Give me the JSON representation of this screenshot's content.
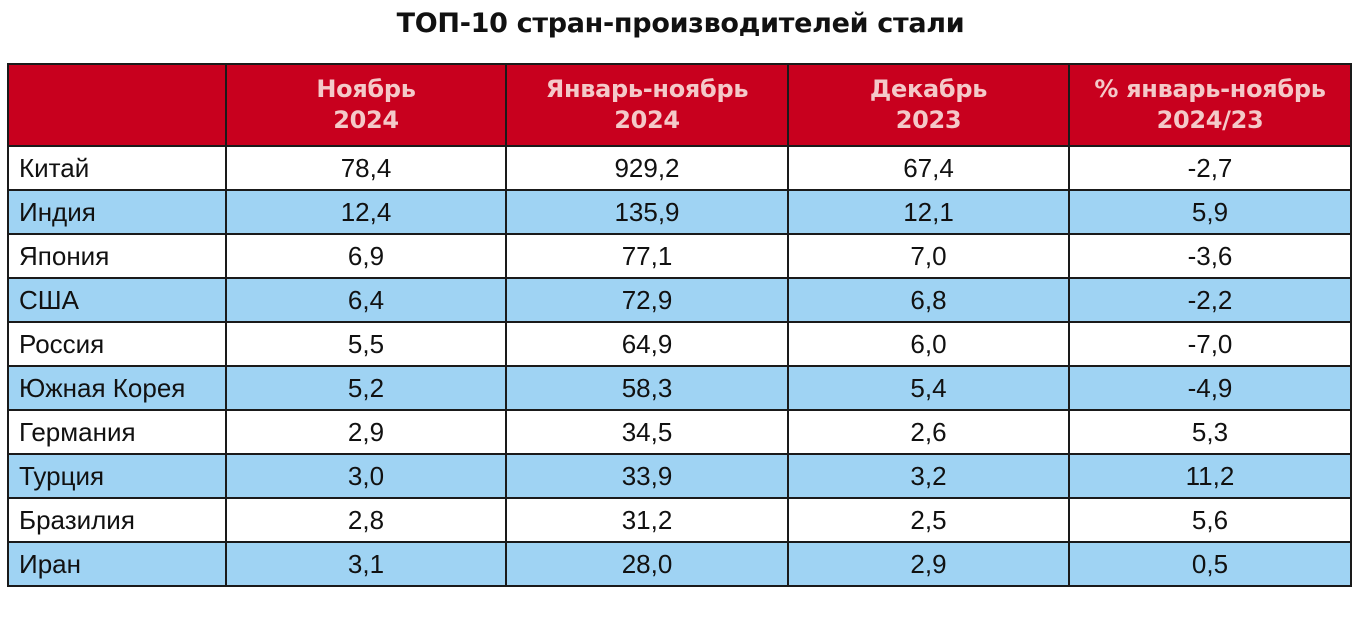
{
  "title": "ТОП-10 стран-производителей стали",
  "colors": {
    "header_bg": "#c8001e",
    "header_text": "#f4c9c9",
    "alt_row_bg": "#9fd3f3",
    "border": "#1a1a1a"
  },
  "table": {
    "headers": [
      {
        "line1": "",
        "line2": ""
      },
      {
        "line1": "Ноябрь",
        "line2": "2024"
      },
      {
        "line1": "Январь-ноябрь",
        "line2": "2024"
      },
      {
        "line1": "Декабрь",
        "line2": "2023"
      },
      {
        "line1": "% январь-ноябрь",
        "line2": "2024/23"
      }
    ],
    "rows": [
      [
        "Китай",
        "78,4",
        "929,2",
        "67,4",
        "-2,7"
      ],
      [
        "Индия",
        "12,4",
        "135,9",
        "12,1",
        "5,9"
      ],
      [
        "Япония",
        "6,9",
        "77,1",
        "7,0",
        "-3,6"
      ],
      [
        "США",
        "6,4",
        "72,9",
        "6,8",
        "-2,2"
      ],
      [
        "Россия",
        "5,5",
        "64,9",
        "6,0",
        "-7,0"
      ],
      [
        "Южная Корея",
        "5,2",
        "58,3",
        "5,4",
        "-4,9"
      ],
      [
        "Германия",
        "2,9",
        "34,5",
        "2,6",
        "5,3"
      ],
      [
        "Турция",
        "3,0",
        "33,9",
        "3,2",
        "11,2"
      ],
      [
        "Бразилия",
        "2,8",
        "31,2",
        "2,5",
        "5,6"
      ],
      [
        "Иран",
        "3,1",
        "28,0",
        "2,9",
        "0,5"
      ]
    ]
  }
}
